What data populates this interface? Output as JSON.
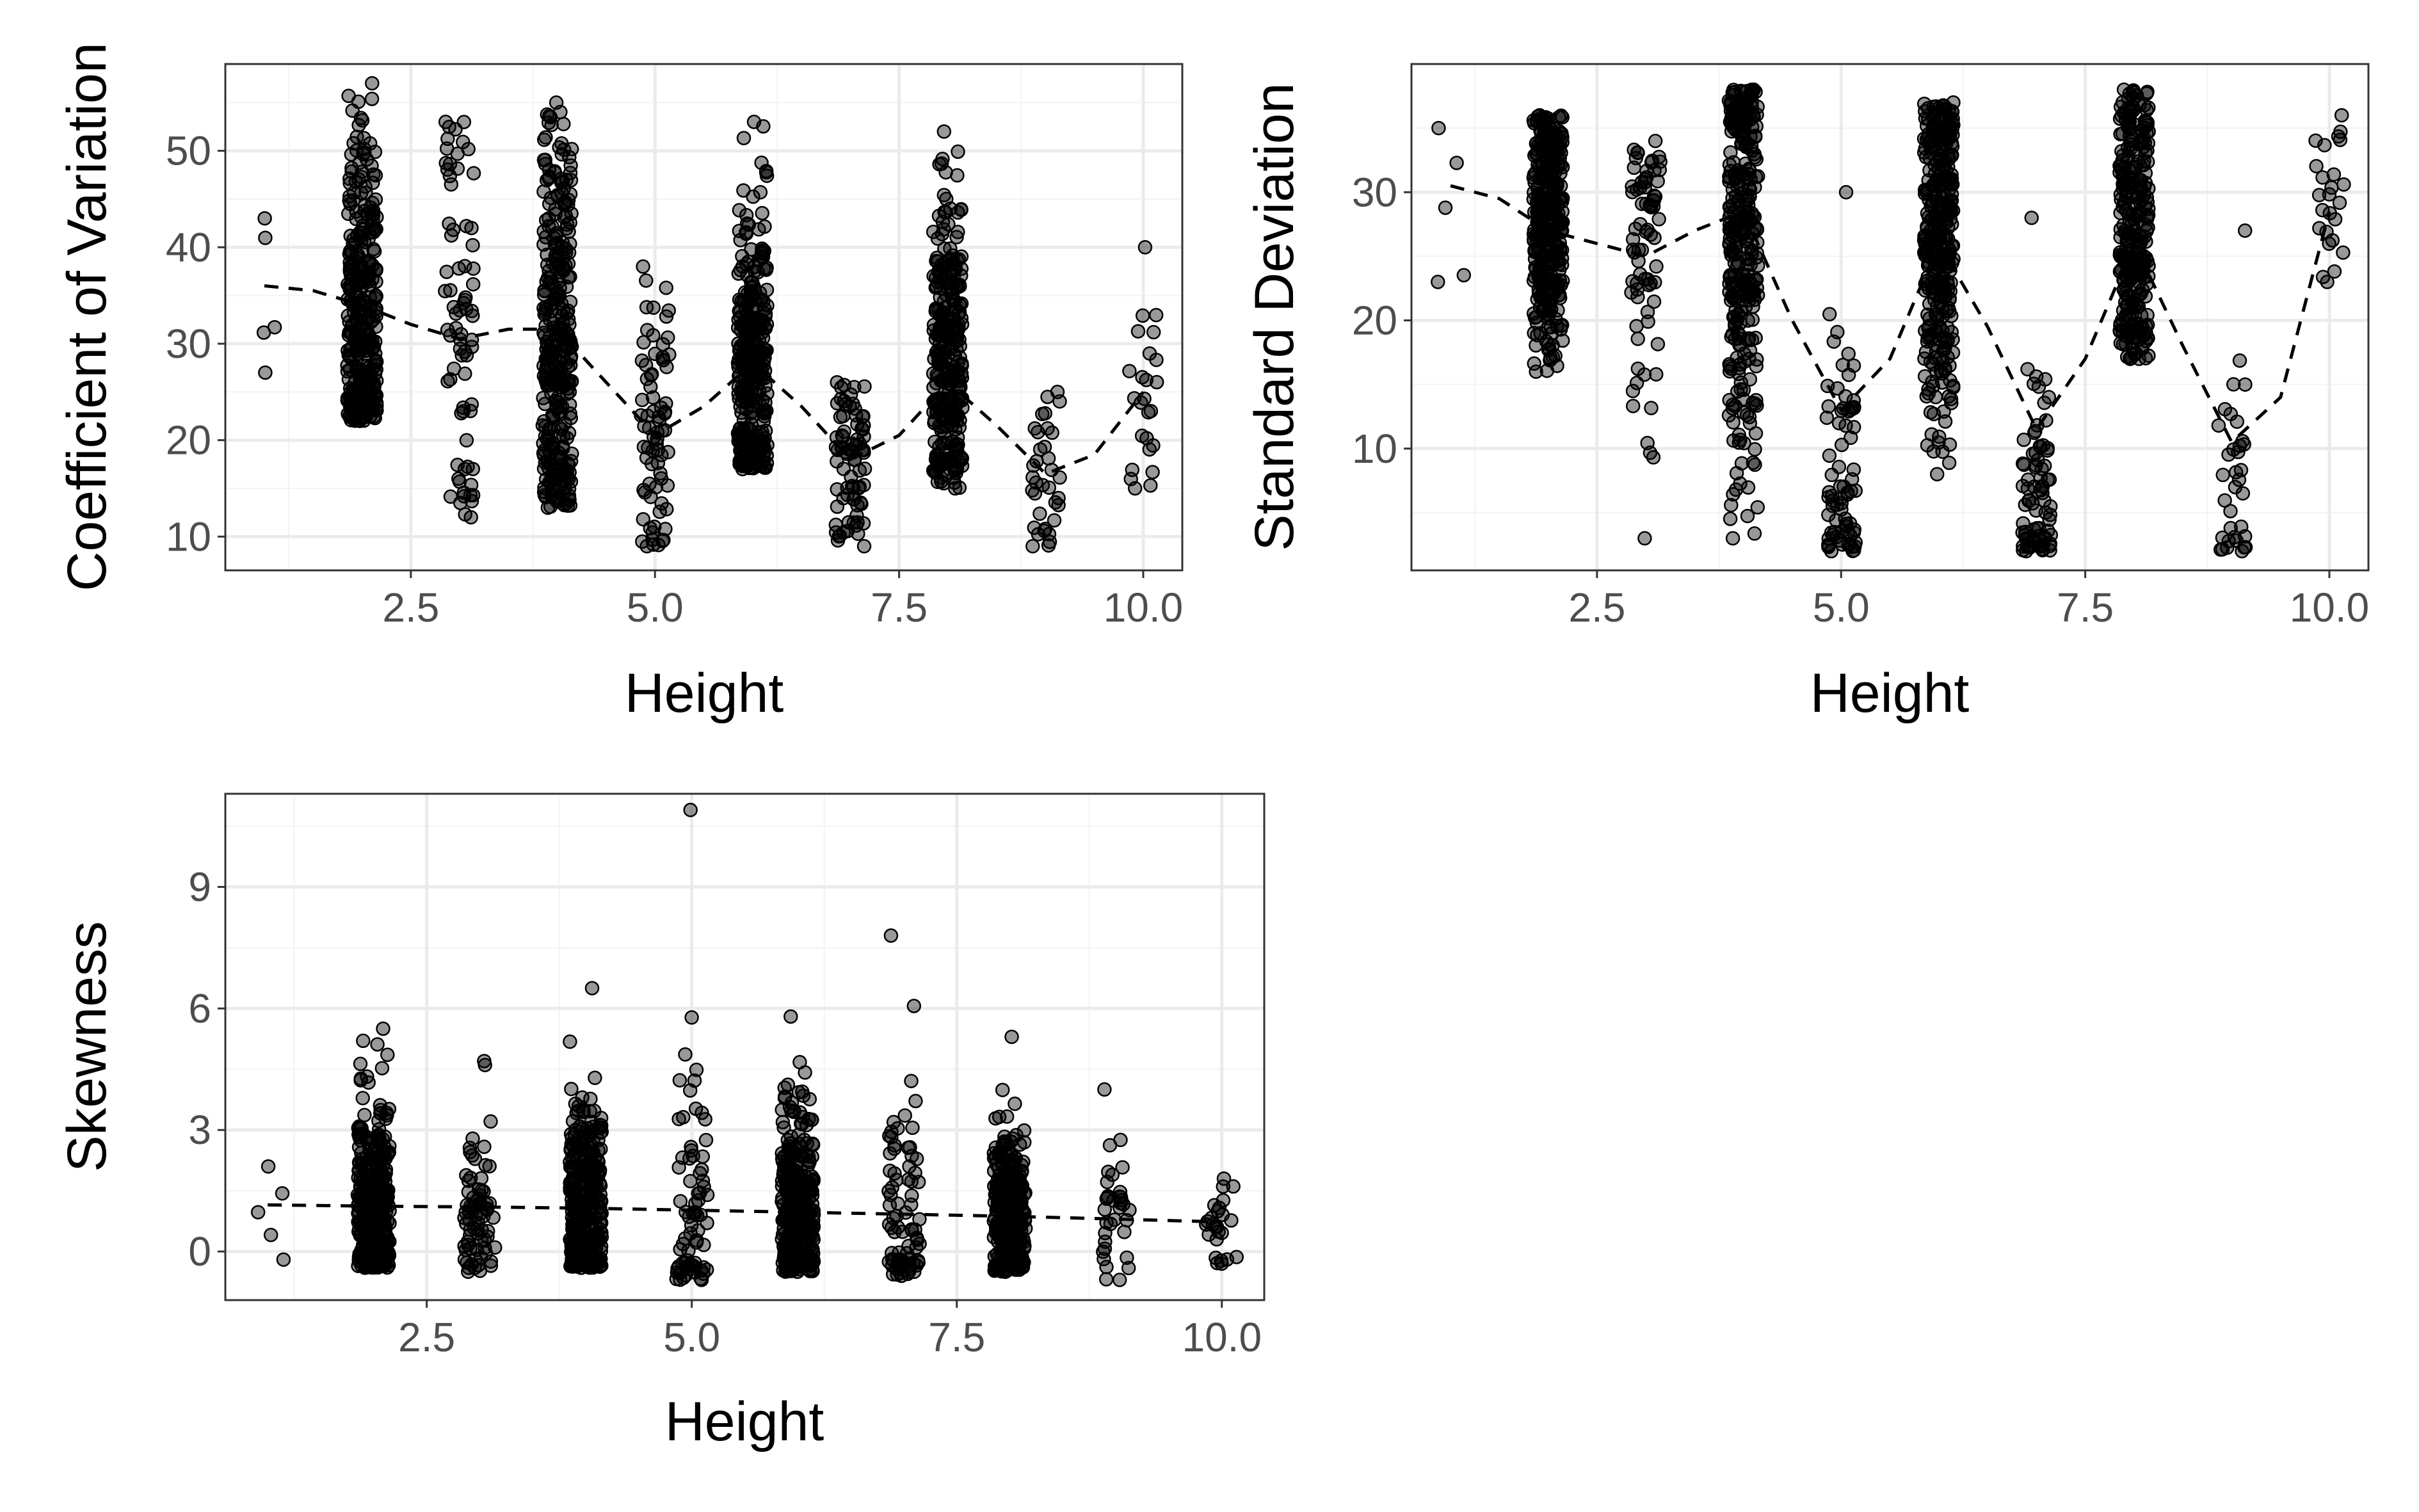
{
  "figure": {
    "background": "#ffffff",
    "panel_border": "#333333",
    "grid_major": "#ebebeb",
    "grid_minor": "#f3f3f3",
    "point_color": "#000000",
    "point_opacity": 0.4,
    "trend_line_style": "dashed"
  },
  "chart_data": [
    {
      "type": "scatter",
      "title": "",
      "xlabel": "Height",
      "ylabel": "Coefficient of Variation",
      "xlim": [
        0.6,
        10.4
      ],
      "ylim": [
        6.5,
        59
      ],
      "x_ticks": [
        2.5,
        5.0,
        7.5,
        10.0
      ],
      "x_tick_labels": [
        "2.5",
        "5.0",
        "7.5",
        "10.0"
      ],
      "y_ticks": [
        10,
        20,
        30,
        40,
        50
      ],
      "y_tick_labels": [
        "10",
        "20",
        "30",
        "40",
        "50"
      ],
      "grid": true,
      "legend": "none",
      "jitter_width": 0.15,
      "groups": [
        {
          "x": 1,
          "n": 5,
          "min": 27,
          "max": 43,
          "median": 36
        },
        {
          "x": 2,
          "n": 340,
          "min": 22,
          "max": 57,
          "median": 33
        },
        {
          "x": 3,
          "n": 75,
          "min": 12,
          "max": 53,
          "median": 30
        },
        {
          "x": 4,
          "n": 330,
          "min": 13,
          "max": 55,
          "median": 30
        },
        {
          "x": 5,
          "n": 75,
          "min": 9,
          "max": 38,
          "median": 21
        },
        {
          "x": 6,
          "n": 350,
          "min": 17,
          "max": 53,
          "median": 27
        },
        {
          "x": 7,
          "n": 80,
          "min": 9,
          "max": 26,
          "median": 18
        },
        {
          "x": 8,
          "n": 300,
          "min": 15,
          "max": 52,
          "median": 27
        },
        {
          "x": 9,
          "n": 35,
          "min": 9,
          "max": 25,
          "median": 17
        },
        {
          "x": 10,
          "n": 25,
          "min": 15,
          "max": 40,
          "median": 25
        }
      ],
      "trend": {
        "x": [
          1,
          1.5,
          2,
          2.5,
          3,
          3.5,
          4,
          4.5,
          5,
          5.5,
          6,
          6.5,
          7,
          7.5,
          8,
          8.5,
          9,
          9.5,
          10
        ],
        "y": [
          36,
          35.5,
          34,
          32,
          30.5,
          31.5,
          31.5,
          26,
          20.5,
          23.5,
          28,
          23.5,
          18,
          20.5,
          26,
          21.5,
          16.5,
          18.5,
          25
        ]
      }
    },
    {
      "type": "scatter",
      "title": "",
      "xlabel": "Height",
      "ylabel": "Standard Deviation",
      "xlim": [
        0.6,
        10.4
      ],
      "ylim": [
        0.5,
        40
      ],
      "x_ticks": [
        2.5,
        5.0,
        7.5,
        10.0
      ],
      "x_tick_labels": [
        "2.5",
        "5.0",
        "7.5",
        "10.0"
      ],
      "y_ticks": [
        10,
        20,
        30
      ],
      "y_tick_labels": [
        "10",
        "20",
        "30"
      ],
      "grid": true,
      "legend": "none",
      "jitter_width": 0.15,
      "groups": [
        {
          "x": 1,
          "n": 5,
          "min": 23,
          "max": 35,
          "median": 30
        },
        {
          "x": 2,
          "n": 340,
          "min": 16,
          "max": 36,
          "median": 28
        },
        {
          "x": 3,
          "n": 75,
          "min": 3,
          "max": 34,
          "median": 26
        },
        {
          "x": 4,
          "n": 330,
          "min": 3,
          "max": 38,
          "median": 27
        },
        {
          "x": 5,
          "n": 75,
          "min": 2,
          "max": 30,
          "median": 8
        },
        {
          "x": 6,
          "n": 350,
          "min": 8,
          "max": 37,
          "median": 27
        },
        {
          "x": 7,
          "n": 80,
          "min": 2,
          "max": 28,
          "median": 6
        },
        {
          "x": 8,
          "n": 300,
          "min": 17,
          "max": 38,
          "median": 27
        },
        {
          "x": 9,
          "n": 35,
          "min": 2,
          "max": 27,
          "median": 6
        },
        {
          "x": 10,
          "n": 25,
          "min": 23,
          "max": 36,
          "median": 29
        }
      ],
      "trend": {
        "x": [
          1,
          1.5,
          2,
          2.5,
          3,
          3.5,
          4,
          4.5,
          5,
          5.5,
          6,
          6.5,
          7,
          7.5,
          8,
          8.5,
          9,
          9.5,
          10
        ],
        "y": [
          30.5,
          29.5,
          27,
          26,
          25,
          27,
          28.5,
          20,
          13,
          17,
          26,
          19.5,
          11.5,
          17,
          26,
          18,
          10.5,
          14,
          28.5
        ]
      }
    },
    {
      "type": "scatter",
      "title": "",
      "xlabel": "Height",
      "ylabel": "Skewness",
      "xlim": [
        0.6,
        10.4
      ],
      "ylim": [
        -1.2,
        11.3
      ],
      "x_ticks": [
        2.5,
        5.0,
        7.5,
        10.0
      ],
      "x_tick_labels": [
        "2.5",
        "5.0",
        "7.5",
        "10.0"
      ],
      "y_ticks": [
        0,
        3,
        6,
        9
      ],
      "y_tick_labels": [
        "0",
        "3",
        "6",
        "9"
      ],
      "grid": true,
      "legend": "none",
      "jitter_width": 0.15,
      "groups": [
        {
          "x": 1,
          "n": 5,
          "min": -0.2,
          "max": 2.1,
          "median": 1.1
        },
        {
          "x": 2,
          "n": 340,
          "min": -0.4,
          "max": 5.5,
          "median": 1.1
        },
        {
          "x": 3,
          "n": 75,
          "min": -0.5,
          "max": 4.7,
          "median": 1.0
        },
        {
          "x": 4,
          "n": 330,
          "min": -0.4,
          "max": 6.5,
          "median": 1.1
        },
        {
          "x": 5,
          "n": 75,
          "min": -0.7,
          "max": 10.9,
          "median": 0.9
        },
        {
          "x": 6,
          "n": 350,
          "min": -0.5,
          "max": 5.8,
          "median": 0.9
        },
        {
          "x": 7,
          "n": 80,
          "min": -0.6,
          "max": 7.8,
          "median": 0.8
        },
        {
          "x": 8,
          "n": 300,
          "min": -0.5,
          "max": 5.3,
          "median": 0.8
        },
        {
          "x": 9,
          "n": 35,
          "min": -0.7,
          "max": 4.0,
          "median": 0.7
        },
        {
          "x": 10,
          "n": 25,
          "min": -0.3,
          "max": 1.8,
          "median": 0.6
        }
      ],
      "trend": {
        "x": [
          1,
          2,
          3,
          4,
          5,
          6,
          7,
          8,
          9,
          10
        ],
        "y": [
          1.15,
          1.12,
          1.1,
          1.07,
          1.02,
          0.97,
          0.92,
          0.87,
          0.8,
          0.73
        ]
      }
    }
  ]
}
